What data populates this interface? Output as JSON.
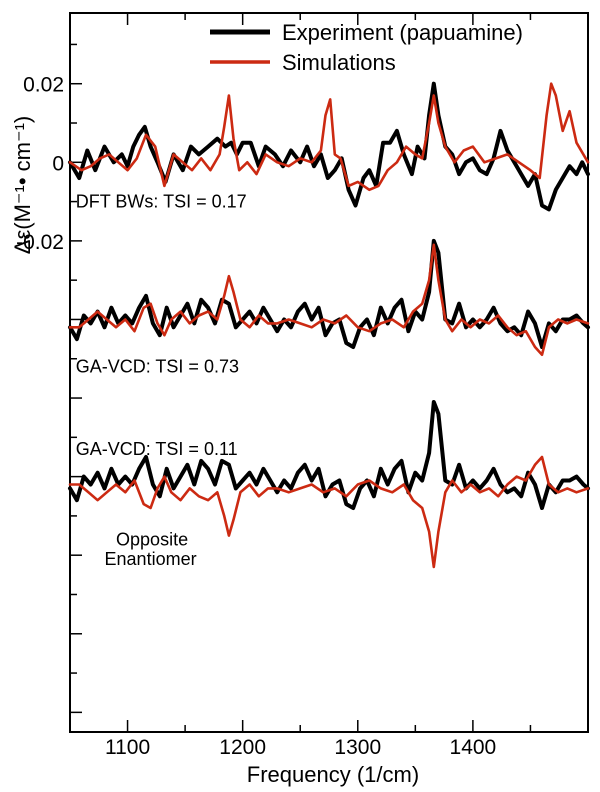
{
  "chart_data": {
    "type": "line",
    "xlabel": "Frequency (1/cm)",
    "ylabel": "Δε(M⁻¹• cm⁻¹)",
    "xlim": [
      1050,
      1500
    ],
    "ylim": [
      -0.145,
      0.038
    ],
    "x_ticks": [
      1100,
      1200,
      1300,
      1400
    ],
    "y_tick_labels": [
      {
        "value": 0.02,
        "label": "0.02"
      },
      {
        "value": 0,
        "label": "0"
      },
      {
        "value": -0.02,
        "label": "-0.02"
      }
    ],
    "legend": {
      "position": "top-right",
      "entries": [
        {
          "label": "Experiment (papuamine)",
          "color": "#000000"
        },
        {
          "label": "Simulations",
          "color": "#cc2a12"
        }
      ]
    },
    "annotations": [
      {
        "text": "DFT BWs: TSI = 0.17",
        "x": 1055,
        "y": -0.0115
      },
      {
        "text": "GA-VCD: TSI = 0.73",
        "x": 1055,
        "y": -0.0535
      },
      {
        "text": "GA-VCD: TSI = 0.11",
        "x": 1055,
        "y": -0.0745
      },
      {
        "text": "Opposite",
        "x": 1090,
        "y": -0.0975
      },
      {
        "text": "Enantiomer",
        "x": 1080,
        "y": -0.1025
      }
    ],
    "panels": [
      {
        "name": "DFT BWs",
        "series": [
          {
            "name": "Experiment (papuamine)",
            "color": "#000000",
            "x": [
              1050,
              1058,
              1065,
              1072,
              1080,
              1088,
              1095,
              1100,
              1105,
              1110,
              1115,
              1120,
              1126,
              1133,
              1140,
              1148,
              1155,
              1162,
              1170,
              1178,
              1185,
              1190,
              1195,
              1200,
              1207,
              1214,
              1220,
              1228,
              1235,
              1242,
              1250,
              1256,
              1262,
              1268,
              1274,
              1280,
              1286,
              1292,
              1298,
              1305,
              1310,
              1316,
              1322,
              1328,
              1334,
              1340,
              1347,
              1352,
              1358,
              1362,
              1366,
              1370,
              1376,
              1382,
              1388,
              1394,
              1400,
              1406,
              1412,
              1418,
              1424,
              1430,
              1436,
              1442,
              1448,
              1454,
              1460,
              1466,
              1472,
              1478,
              1484,
              1490,
              1495,
              1500
            ],
            "y": [
              0,
              -0.004,
              0.003,
              -0.002,
              0.004,
              0,
              0.002,
              -0.001,
              0.004,
              0.007,
              0.009,
              0.004,
              0,
              -0.005,
              0.002,
              -0.002,
              0.004,
              0.002,
              0.004,
              0.006,
              0.004,
              0.005,
              0.002,
              0.005,
              0.005,
              -0.001,
              0.004,
              0.002,
              -0.001,
              0.003,
              0,
              0.004,
              -0.001,
              0.002,
              -0.004,
              -0.002,
              0.001,
              -0.007,
              -0.011,
              -0.004,
              -0.002,
              -0.006,
              0.005,
              0.005,
              0.008,
              0.002,
              -0.003,
              0.004,
              0.001,
              0.012,
              0.02,
              0.012,
              0.004,
              0.002,
              -0.003,
              0,
              0.001,
              -0.002,
              -0.003,
              0.001,
              0.008,
              0.003,
              0,
              -0.003,
              -0.006,
              -0.003,
              -0.011,
              -0.012,
              -0.007,
              -0.004,
              -0.001,
              -0.003,
              0,
              -0.003
            ]
          },
          {
            "name": "Simulations",
            "color": "#cc2a12",
            "x": [
              1050,
              1060,
              1068,
              1076,
              1084,
              1092,
              1100,
              1108,
              1116,
              1124,
              1132,
              1140,
              1148,
              1156,
              1164,
              1172,
              1180,
              1184,
              1188,
              1192,
              1197,
              1204,
              1212,
              1220,
              1230,
              1240,
              1250,
              1260,
              1268,
              1272,
              1276,
              1280,
              1285,
              1292,
              1300,
              1310,
              1318,
              1326,
              1334,
              1342,
              1350,
              1356,
              1362,
              1366,
              1370,
              1376,
              1384,
              1392,
              1400,
              1410,
              1420,
              1430,
              1440,
              1450,
              1458,
              1464,
              1468,
              1472,
              1478,
              1484,
              1490,
              1500
            ],
            "y": [
              0,
              -0.002,
              -0.001,
              0.001,
              0.002,
              0,
              -0.002,
              0.001,
              0.007,
              0.004,
              -0.006,
              0.002,
              0,
              -0.002,
              0.001,
              -0.002,
              0.002,
              0.009,
              0.017,
              0.006,
              -0.002,
              0,
              -0.003,
              0.002,
              0,
              -0.001,
              0.001,
              0,
              0.003,
              0.012,
              0.016,
              0.002,
              0.001,
              -0.006,
              -0.005,
              -0.007,
              -0.006,
              -0.002,
              0,
              0.004,
              0.002,
              0.001,
              0.01,
              0.017,
              0.01,
              0.004,
              0,
              0.003,
              0.004,
              0,
              0.001,
              0.002,
              0,
              -0.002,
              -0.004,
              0.012,
              0.02,
              0.017,
              0.008,
              0.013,
              0.005,
              0
            ]
          }
        ]
      },
      {
        "name": "GA-VCD: TSI = 0.73",
        "series": [
          {
            "name": "Experiment (papuamine)",
            "color": "#000000",
            "x": [
              1050,
              1056,
              1062,
              1068,
              1074,
              1080,
              1086,
              1092,
              1098,
              1104,
              1110,
              1116,
              1122,
              1128,
              1134,
              1140,
              1146,
              1152,
              1158,
              1164,
              1170,
              1176,
              1182,
              1188,
              1194,
              1200,
              1206,
              1212,
              1218,
              1224,
              1230,
              1236,
              1242,
              1248,
              1254,
              1260,
              1266,
              1272,
              1278,
              1284,
              1290,
              1296,
              1302,
              1308,
              1314,
              1320,
              1326,
              1332,
              1338,
              1344,
              1350,
              1356,
              1362,
              1366,
              1370,
              1376,
              1382,
              1388,
              1394,
              1400,
              1406,
              1412,
              1418,
              1424,
              1430,
              1436,
              1442,
              1448,
              1454,
              1460,
              1466,
              1472,
              1478,
              1484,
              1490,
              1496,
              1500
            ],
            "y": [
              -0.042,
              -0.045,
              -0.039,
              -0.041,
              -0.038,
              -0.042,
              -0.037,
              -0.041,
              -0.039,
              -0.041,
              -0.037,
              -0.034,
              -0.041,
              -0.044,
              -0.037,
              -0.042,
              -0.039,
              -0.036,
              -0.041,
              -0.035,
              -0.037,
              -0.041,
              -0.035,
              -0.036,
              -0.042,
              -0.04,
              -0.038,
              -0.041,
              -0.037,
              -0.04,
              -0.043,
              -0.04,
              -0.042,
              -0.038,
              -0.036,
              -0.04,
              -0.037,
              -0.044,
              -0.041,
              -0.04,
              -0.046,
              -0.047,
              -0.042,
              -0.04,
              -0.044,
              -0.037,
              -0.041,
              -0.037,
              -0.035,
              -0.043,
              -0.038,
              -0.04,
              -0.033,
              -0.02,
              -0.023,
              -0.04,
              -0.041,
              -0.036,
              -0.042,
              -0.04,
              -0.042,
              -0.04,
              -0.037,
              -0.041,
              -0.043,
              -0.042,
              -0.044,
              -0.038,
              -0.041,
              -0.047,
              -0.041,
              -0.043,
              -0.04,
              -0.04,
              -0.039,
              -0.041,
              -0.042
            ]
          },
          {
            "name": "Simulations",
            "color": "#cc2a12",
            "x": [
              1050,
              1058,
              1066,
              1074,
              1082,
              1090,
              1098,
              1106,
              1114,
              1120,
              1126,
              1132,
              1138,
              1146,
              1154,
              1162,
              1170,
              1178,
              1184,
              1188,
              1192,
              1198,
              1206,
              1214,
              1222,
              1230,
              1240,
              1250,
              1260,
              1270,
              1280,
              1290,
              1300,
              1310,
              1320,
              1330,
              1340,
              1348,
              1356,
              1362,
              1366,
              1370,
              1376,
              1382,
              1390,
              1398,
              1406,
              1414,
              1422,
              1430,
              1438,
              1446,
              1454,
              1460,
              1466,
              1474,
              1482,
              1490,
              1500
            ],
            "y": [
              -0.042,
              -0.042,
              -0.04,
              -0.038,
              -0.04,
              -0.042,
              -0.04,
              -0.043,
              -0.037,
              -0.036,
              -0.041,
              -0.044,
              -0.04,
              -0.038,
              -0.041,
              -0.039,
              -0.038,
              -0.04,
              -0.034,
              -0.029,
              -0.033,
              -0.04,
              -0.042,
              -0.039,
              -0.041,
              -0.041,
              -0.04,
              -0.041,
              -0.042,
              -0.04,
              -0.041,
              -0.039,
              -0.042,
              -0.043,
              -0.041,
              -0.04,
              -0.042,
              -0.038,
              -0.036,
              -0.03,
              -0.021,
              -0.03,
              -0.04,
              -0.043,
              -0.04,
              -0.042,
              -0.04,
              -0.041,
              -0.039,
              -0.042,
              -0.044,
              -0.043,
              -0.047,
              -0.049,
              -0.042,
              -0.04,
              -0.041,
              -0.04,
              -0.041
            ]
          }
        ]
      },
      {
        "name": "GA-VCD: TSI = 0.11 (Opposite Enantiomer)",
        "series": [
          {
            "name": "Experiment (papuamine)",
            "color": "#000000",
            "x": [
              1050,
              1056,
              1062,
              1068,
              1074,
              1080,
              1086,
              1092,
              1098,
              1104,
              1110,
              1116,
              1122,
              1128,
              1134,
              1140,
              1146,
              1152,
              1158,
              1164,
              1170,
              1176,
              1182,
              1188,
              1194,
              1200,
              1206,
              1212,
              1218,
              1224,
              1230,
              1236,
              1242,
              1248,
              1254,
              1260,
              1266,
              1272,
              1278,
              1284,
              1290,
              1296,
              1302,
              1308,
              1314,
              1320,
              1326,
              1332,
              1338,
              1344,
              1350,
              1356,
              1362,
              1366,
              1370,
              1376,
              1382,
              1388,
              1394,
              1400,
              1406,
              1412,
              1418,
              1424,
              1430,
              1436,
              1442,
              1448,
              1454,
              1460,
              1466,
              1472,
              1478,
              1484,
              1490,
              1496,
              1500
            ],
            "y": [
              -0.083,
              -0.086,
              -0.08,
              -0.082,
              -0.079,
              -0.083,
              -0.078,
              -0.082,
              -0.08,
              -0.082,
              -0.078,
              -0.075,
              -0.082,
              -0.085,
              -0.078,
              -0.083,
              -0.08,
              -0.077,
              -0.082,
              -0.076,
              -0.078,
              -0.082,
              -0.076,
              -0.077,
              -0.083,
              -0.081,
              -0.079,
              -0.082,
              -0.078,
              -0.081,
              -0.084,
              -0.081,
              -0.083,
              -0.079,
              -0.077,
              -0.081,
              -0.078,
              -0.085,
              -0.082,
              -0.081,
              -0.087,
              -0.088,
              -0.083,
              -0.081,
              -0.085,
              -0.078,
              -0.082,
              -0.078,
              -0.076,
              -0.084,
              -0.079,
              -0.081,
              -0.074,
              -0.061,
              -0.064,
              -0.081,
              -0.082,
              -0.077,
              -0.083,
              -0.081,
              -0.083,
              -0.081,
              -0.078,
              -0.082,
              -0.084,
              -0.083,
              -0.085,
              -0.079,
              -0.082,
              -0.088,
              -0.082,
              -0.084,
              -0.081,
              -0.081,
              -0.08,
              -0.082,
              -0.083
            ]
          },
          {
            "name": "Simulations",
            "color": "#cc2a12",
            "x": [
              1050,
              1058,
              1066,
              1074,
              1082,
              1090,
              1098,
              1106,
              1114,
              1120,
              1126,
              1132,
              1138,
              1146,
              1154,
              1162,
              1170,
              1178,
              1184,
              1188,
              1192,
              1198,
              1206,
              1214,
              1222,
              1230,
              1240,
              1250,
              1260,
              1270,
              1280,
              1290,
              1300,
              1310,
              1320,
              1330,
              1340,
              1348,
              1356,
              1362,
              1366,
              1370,
              1376,
              1382,
              1390,
              1398,
              1406,
              1414,
              1422,
              1430,
              1438,
              1446,
              1454,
              1460,
              1466,
              1474,
              1482,
              1490,
              1500
            ],
            "y": [
              -0.082,
              -0.082,
              -0.084,
              -0.086,
              -0.084,
              -0.082,
              -0.084,
              -0.081,
              -0.087,
              -0.088,
              -0.083,
              -0.08,
              -0.084,
              -0.086,
              -0.083,
              -0.085,
              -0.086,
              -0.084,
              -0.09,
              -0.095,
              -0.091,
              -0.084,
              -0.082,
              -0.085,
              -0.083,
              -0.083,
              -0.084,
              -0.083,
              -0.082,
              -0.084,
              -0.083,
              -0.085,
              -0.082,
              -0.081,
              -0.083,
              -0.084,
              -0.082,
              -0.086,
              -0.088,
              -0.094,
              -0.103,
              -0.094,
              -0.084,
              -0.081,
              -0.084,
              -0.082,
              -0.084,
              -0.083,
              -0.085,
              -0.082,
              -0.08,
              -0.081,
              -0.077,
              -0.075,
              -0.082,
              -0.084,
              -0.083,
              -0.084,
              -0.083
            ]
          }
        ]
      }
    ]
  }
}
